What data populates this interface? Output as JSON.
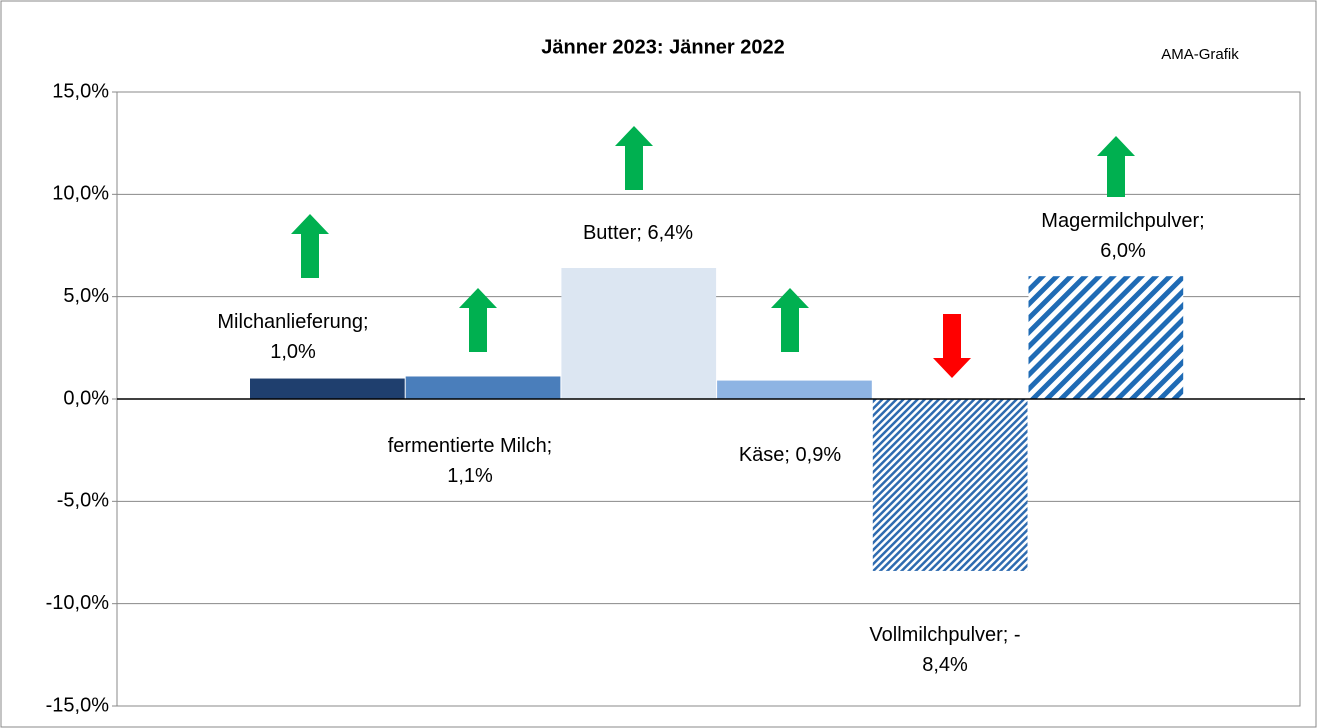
{
  "chart_data": {
    "type": "bar",
    "title": "Jänner 2023: Jänner 2022",
    "source": "AMA-Grafik",
    "categories": [
      "Milchanlieferung",
      "fermentierte Milch",
      "Butter",
      "Käse",
      "Vollmilchpulver",
      "Magermilchpulver"
    ],
    "values": [
      1.0,
      1.1,
      6.4,
      0.9,
      -8.4,
      6.0
    ],
    "value_labels": [
      "Milchanlieferung;\n1,0%",
      "fermentierte Milch;\n1,1%",
      "Butter; 6,4%",
      "Käse; 0,9%",
      "Vollmilchpulver; -\n8,4%",
      "Magermilchpulver;\n6,0%"
    ],
    "colors": [
      "#1f3f6e",
      "#4a7ebb",
      "#dce6f2",
      "#8eb4e3",
      "#2e6bb0",
      "#1f6bb5"
    ],
    "patterns": [
      null,
      null,
      null,
      null,
      "fine-hatch",
      "wide-hatch"
    ],
    "ylim": [
      -15,
      15
    ],
    "yticks": [
      {
        "value": -15,
        "label": "-15,0%"
      },
      {
        "value": -10,
        "label": "-10,0%"
      },
      {
        "value": -5,
        "label": "-5,0%"
      },
      {
        "value": 0,
        "label": "0,0%"
      },
      {
        "value": 5,
        "label": "5,0%"
      },
      {
        "value": 10,
        "label": "10,0%"
      },
      {
        "value": 15,
        "label": "15,0%"
      }
    ],
    "grid": true
  }
}
